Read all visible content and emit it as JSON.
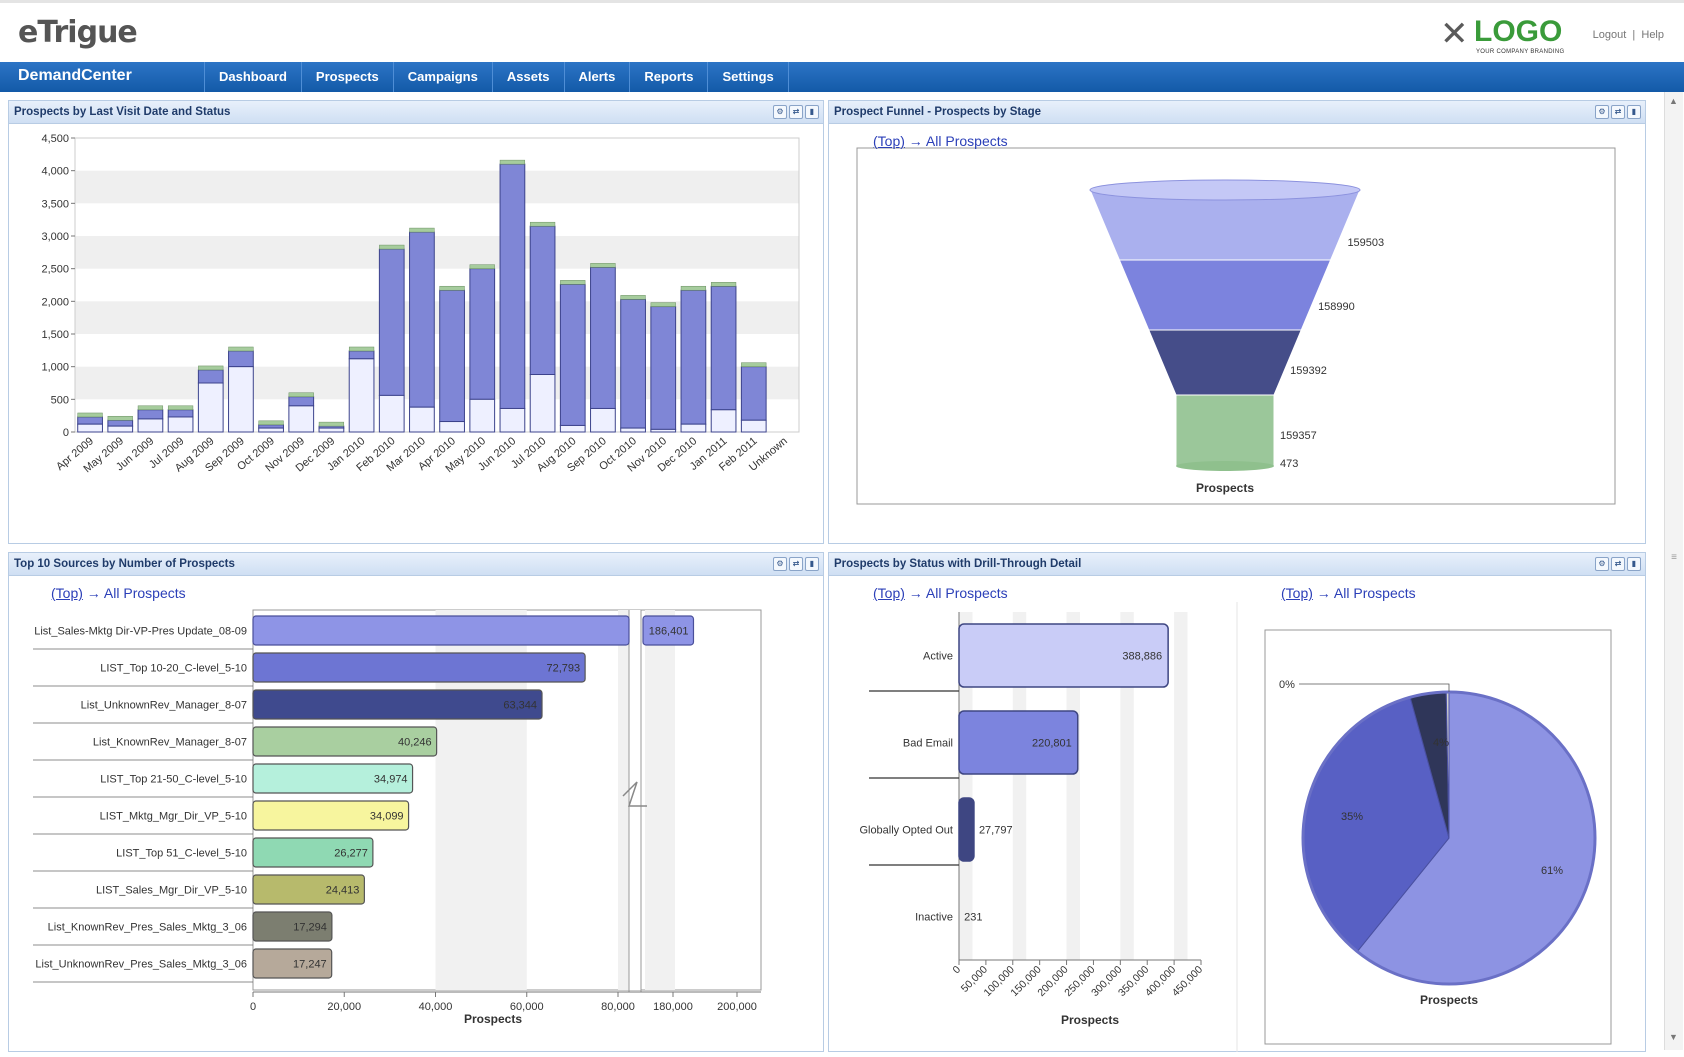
{
  "header": {
    "brand": "eTrigue",
    "logo_word": "LOGO",
    "logo_sub": "YOUR COMPANY BRANDING",
    "links": [
      "Logout",
      "Help"
    ],
    "app": "DemandCenter",
    "nav": [
      "Dashboard",
      "Prospects",
      "Campaigns",
      "Assets",
      "Alerts",
      "Reports",
      "Settings"
    ]
  },
  "drill": {
    "top": "(Top)",
    "arrow": "→",
    "all": "All Prospects"
  },
  "panels": {
    "p1": "Prospects by Last Visit Date and Status",
    "p2": "Prospect Funnel - Prospects by Stage",
    "p3": "Top 10 Sources by Number of Prospects",
    "p4": "Prospects by Status with Drill-Through Detail"
  },
  "chart_data": [
    {
      "type": "bar",
      "stacked": true,
      "categories": [
        "Apr 2009",
        "May 2009",
        "Jun 2009",
        "Jul 2009",
        "Aug 2009",
        "Sep 2009",
        "Oct 2009",
        "Nov 2009",
        "Dec 2009",
        "Jan 2010",
        "Feb 2010",
        "Mar 2010",
        "Apr 2010",
        "May 2010",
        "Jun 2010",
        "Jul 2010",
        "Aug 2010",
        "Sep 2010",
        "Oct 2010",
        "Nov 2010",
        "Dec 2010",
        "Jan 2011",
        "Feb 2011",
        "Unknown"
      ],
      "totals": [
        230,
        180,
        340,
        340,
        950,
        1240,
        110,
        540,
        90,
        1240,
        2800,
        3060,
        2170,
        2500,
        4100,
        3150,
        2260,
        2520,
        2030,
        1920,
        2170,
        2230,
        1000,
        0
      ],
      "white": [
        120,
        90,
        200,
        230,
        750,
        1000,
        60,
        400,
        60,
        1120,
        560,
        380,
        160,
        500,
        360,
        880,
        100,
        360,
        60,
        40,
        120,
        340,
        180,
        0
      ],
      "yticks": [
        0,
        500,
        1000,
        1500,
        2000,
        2500,
        3000,
        3500,
        4000,
        4500
      ],
      "ytick_labels": [
        "0",
        "500",
        "1,000",
        "1,500",
        "2,000",
        "2,500",
        "3,000",
        "3,500",
        "4,000",
        "4,500"
      ],
      "ylim": [
        0,
        4500
      ],
      "colors": {
        "main": "#7f86d6",
        "white": "#eef0ff",
        "green": "#a6cc9d"
      }
    },
    {
      "type": "funnel",
      "values": [
        "159503",
        "158990",
        "159392",
        "159357",
        "473"
      ],
      "label": "Prospects",
      "colors": [
        "#aab0ee",
        "#7c83de",
        "#454d89",
        "#9bc79a"
      ]
    },
    {
      "type": "bar",
      "orientation": "horizontal",
      "categories": [
        "List_Sales-Mktg Dir-VP-Pres Update_08-09",
        "LIST_Top 10-20_C-level_5-10",
        "List_UnknownRev_Manager_8-07",
        "List_KnownRev_Manager_8-07",
        "LIST_Top 21-50_C-level_5-10",
        "LIST_Mktg_Mgr_Dir_VP_5-10",
        "LIST_Top 51_C-level_5-10",
        "LIST_Sales_Mgr_Dir_VP_5-10",
        "List_KnownRev_Pres_Sales_Mktg_3_06",
        "List_UnknownRev_Pres_Sales_Mktg_3_06"
      ],
      "values": [
        186401,
        72793,
        63344,
        40246,
        34974,
        34099,
        26277,
        24413,
        17294,
        17247
      ],
      "value_labels": [
        "186,401",
        "72,793",
        "63,344",
        "40,246",
        "34,974",
        "34,099",
        "26,277",
        "24,413",
        "17,294",
        "17,247"
      ],
      "xtick_labels_left": [
        "0",
        "20,000",
        "40,000",
        "60,000",
        "80,000"
      ],
      "xtick_labels_right": [
        "180,000",
        "200,000"
      ],
      "xlabel": "Prospects",
      "colors": [
        "#8e94e6",
        "#6d75d3",
        "#3f4a8e",
        "#a9cfa0",
        "#b5f0dc",
        "#f7f59e",
        "#8fd9b3",
        "#b7ba6c",
        "#7c7e70",
        "#b6a99a"
      ]
    },
    {
      "type": "bar",
      "orientation": "horizontal",
      "categories": [
        "Active",
        "Bad Email",
        "Globally Opted Out",
        "Inactive"
      ],
      "values": [
        388886,
        220801,
        27797,
        231
      ],
      "value_labels": [
        "388,886",
        "220,801",
        "27,797",
        "231"
      ],
      "xtick_labels": [
        "0",
        "50,000",
        "100,000",
        "150,000",
        "200,000",
        "250,000",
        "300,000",
        "350,000",
        "400,000",
        "450,000"
      ],
      "xlim": [
        0,
        450000
      ],
      "xlabel": "Prospects",
      "colors": [
        "#c9ccf7",
        "#7c84de",
        "#3e4682",
        "#3e4682"
      ]
    },
    {
      "type": "pie",
      "labels": [
        "61%",
        "35%",
        "4%",
        "0%"
      ],
      "values": [
        61,
        35,
        4,
        0.3
      ],
      "xlabel": "Prospects",
      "colors": [
        "#8d93e3",
        "#5860c4",
        "#2f3659",
        "#d0d0d0"
      ]
    }
  ]
}
